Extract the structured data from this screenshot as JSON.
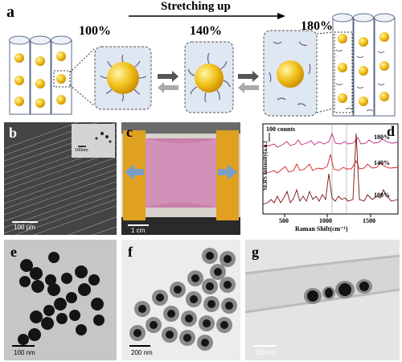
{
  "figure": {
    "panel_a": {
      "label": "a",
      "title": "Stretching up",
      "stages": [
        "100%",
        "140%",
        "180%"
      ]
    },
    "panel_b": {
      "label": "b",
      "scale_bar": "100 μm",
      "inset_scale_bar": "100nm"
    },
    "panel_c": {
      "label": "c",
      "scale_bar": "1 cm"
    },
    "panel_d": {
      "label": "d",
      "counts_label": "100 counts",
      "y_axis_label": "SERS Intensity(a.u.)",
      "x_axis_label": "Raman Shift(cm⁻¹)",
      "x_ticks": [
        "500",
        "1000",
        "1500"
      ],
      "series_labels": [
        "180%",
        "140%",
        "100%"
      ],
      "colors": [
        "#c02878",
        "#d42020",
        "#7a1010"
      ]
    },
    "panel_e": {
      "label": "e",
      "scale_bar": "100 nm"
    },
    "panel_f": {
      "label": "f",
      "scale_bar": "200 nm"
    },
    "panel_g": {
      "label": "g",
      "scale_bar": "100 nm"
    }
  }
}
